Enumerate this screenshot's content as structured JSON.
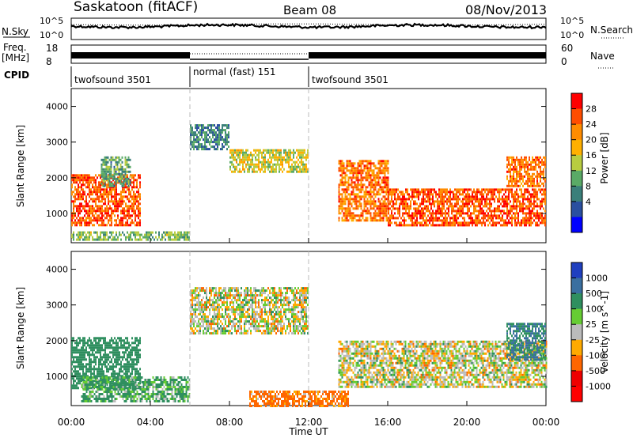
{
  "header": {
    "title": "Saskatoon (fitACF)",
    "beam": "Beam 08",
    "date": "08/Nov/2013"
  },
  "noise_panel": {
    "left_label": "N.Sky",
    "right_label": "N.Search",
    "left_ticks": [
      "10^5",
      "10^0"
    ],
    "right_ticks": [
      "10^5",
      "10^0"
    ]
  },
  "freq_panel": {
    "left_label": "Freq.",
    "left_unit": "[MHz]",
    "right_label": "Nave",
    "left_ticks": [
      "18",
      "8"
    ],
    "right_ticks": [
      "60",
      "0"
    ]
  },
  "cpid": {
    "label": "CPID",
    "segments": [
      {
        "name": "twofsound 3501",
        "start_h": 0,
        "end_h": 6
      },
      {
        "name": "normal (fast) 151",
        "start_h": 6,
        "end_h": 12
      },
      {
        "name": "twofsound 3501",
        "start_h": 12,
        "end_h": 24
      }
    ]
  },
  "power_panel": {
    "ylabel": "Slant Range [km]",
    "cbar_label": "Power [dB]",
    "cbar_ticks": [
      "28",
      "24",
      "20",
      "16",
      "12",
      "8",
      "4"
    ],
    "cbar_colors": [
      "#ff0000",
      "#ff4d00",
      "#ff8c00",
      "#ffb000",
      "#b8cc40",
      "#5aaa66",
      "#3a7f7a",
      "#2a4fa0",
      "#0000ff"
    ]
  },
  "velocity_panel": {
    "ylabel": "Slant Range [km]",
    "cbar_label": "Velocity [m s^-1]",
    "cbar_ticks": [
      "1000",
      "500",
      "100",
      "25",
      "-25",
      "-100",
      "-500",
      "-1000"
    ],
    "cbar_colors": [
      "#1f3fbf",
      "#3a6fa0",
      "#2f8f5f",
      "#66cc33",
      "#bbbbbb",
      "#ffaa00",
      "#ff6600",
      "#ee0000",
      "#ff0000"
    ]
  },
  "x_axis": {
    "label": "Time UT",
    "ticks": [
      "00:00",
      "04:00",
      "08:00",
      "12:00",
      "16:00",
      "20:00",
      "00:00"
    ]
  },
  "chart_data": [
    {
      "type": "heatmap",
      "title": "Power [dB]",
      "xlabel": "Time UT",
      "ylabel": "Slant Range [km]",
      "xlim": [
        0,
        24
      ],
      "ylim": [
        180,
        4500
      ],
      "y_ticks": [
        1000,
        2000,
        3000,
        4000
      ],
      "cbar_range_db": [
        0,
        30
      ],
      "echo_regions": [
        {
          "t0": 0.0,
          "t1": 3.5,
          "r0": 700,
          "r1": 2100,
          "power_db": 26
        },
        {
          "t0": 1.5,
          "t1": 3.0,
          "r0": 1800,
          "r1": 2600,
          "power_db": 10
        },
        {
          "t0": 0.0,
          "t1": 6.0,
          "r0": 300,
          "r1": 500,
          "power_db": 12
        },
        {
          "t0": 6.0,
          "t1": 8.0,
          "r0": 2800,
          "r1": 3500,
          "power_db": 8
        },
        {
          "t0": 8.0,
          "t1": 12.0,
          "r0": 2200,
          "r1": 2800,
          "power_db": 16
        },
        {
          "t0": 13.5,
          "t1": 16.0,
          "r0": 800,
          "r1": 2500,
          "power_db": 24
        },
        {
          "t0": 16.0,
          "t1": 24.0,
          "r0": 700,
          "r1": 1700,
          "power_db": 26
        },
        {
          "t0": 22.0,
          "t1": 24.0,
          "r0": 1800,
          "r1": 2600,
          "power_db": 24
        }
      ]
    },
    {
      "type": "heatmap",
      "title": "Velocity [m s^-1]",
      "xlabel": "Time UT",
      "ylabel": "Slant Range [km]",
      "xlim": [
        0,
        24
      ],
      "ylim": [
        180,
        4500
      ],
      "y_ticks": [
        1000,
        2000,
        3000,
        4000
      ],
      "cbar_levels": [
        1000,
        500,
        100,
        25,
        -25,
        -100,
        -500,
        -1000
      ],
      "echo_regions": [
        {
          "t0": 0.0,
          "t1": 3.5,
          "r0": 700,
          "r1": 2100,
          "velocity": 150
        },
        {
          "t0": 0.5,
          "t1": 6.0,
          "r0": 300,
          "r1": 1000,
          "velocity": 80
        },
        {
          "t0": 6.0,
          "t1": 12.0,
          "r0": 2200,
          "r1": 3500,
          "velocity": 0
        },
        {
          "t0": 9.0,
          "t1": 14.0,
          "r0": 200,
          "r1": 600,
          "velocity": -90
        },
        {
          "t0": 13.5,
          "t1": 24.0,
          "r0": 700,
          "r1": 2000,
          "velocity": 0
        },
        {
          "t0": 22.0,
          "t1": 24.0,
          "r0": 1500,
          "r1": 2500,
          "velocity": 300
        }
      ]
    }
  ]
}
